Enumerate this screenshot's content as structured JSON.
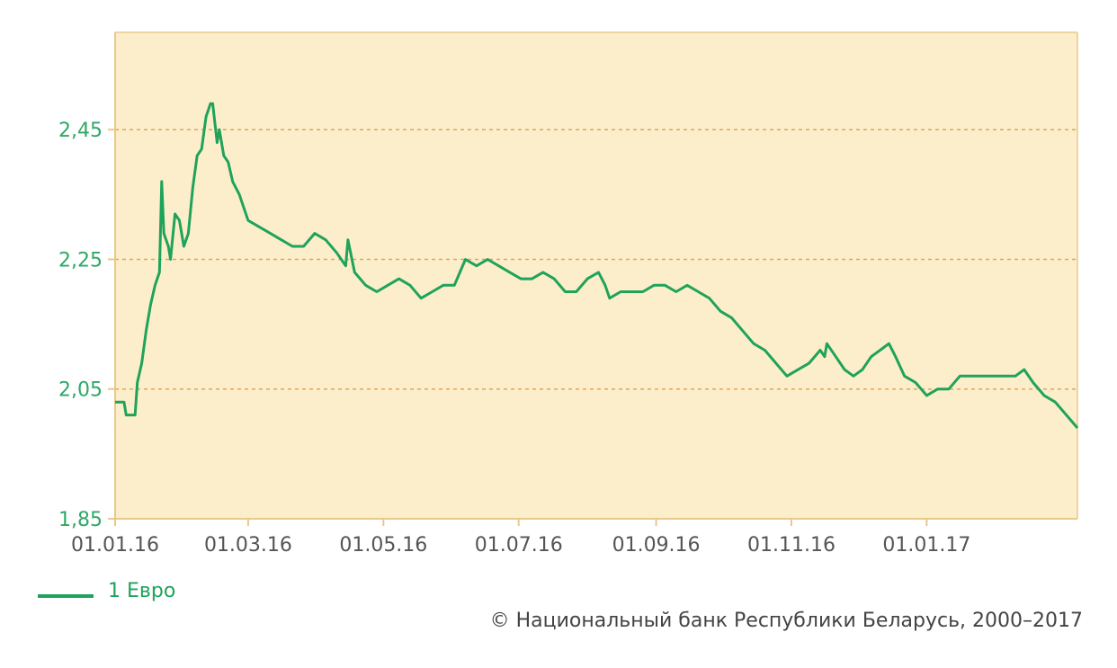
{
  "chart_data": {
    "type": "line",
    "title": "",
    "xlabel": "",
    "ylabel": "",
    "ylim": [
      1.85,
      2.6
    ],
    "xlim": [
      "2016-01-01",
      "2017-03-10"
    ],
    "grid": "horizontal dashed",
    "legend_position": "bottom-left",
    "y_ticks": [
      "1,85",
      "2,05",
      "2,25",
      "2,45"
    ],
    "x_ticks": [
      "01.01.16",
      "01.03.16",
      "01.05.16",
      "01.07.16",
      "01.09.16",
      "01.11.16",
      "01.01.17"
    ],
    "series": [
      {
        "name": "1 Евро",
        "points": [
          [
            "2016-01-01",
            2.03
          ],
          [
            "2016-01-05",
            2.03
          ],
          [
            "2016-01-06",
            2.01
          ],
          [
            "2016-01-10",
            2.01
          ],
          [
            "2016-01-11",
            2.06
          ],
          [
            "2016-01-13",
            2.09
          ],
          [
            "2016-01-15",
            2.14
          ],
          [
            "2016-01-17",
            2.18
          ],
          [
            "2016-01-19",
            2.21
          ],
          [
            "2016-01-21",
            2.23
          ],
          [
            "2016-01-22",
            2.37
          ],
          [
            "2016-01-23",
            2.29
          ],
          [
            "2016-01-25",
            2.27
          ],
          [
            "2016-01-26",
            2.25
          ],
          [
            "2016-01-28",
            2.32
          ],
          [
            "2016-01-30",
            2.31
          ],
          [
            "2016-02-01",
            2.27
          ],
          [
            "2016-02-03",
            2.29
          ],
          [
            "2016-02-05",
            2.36
          ],
          [
            "2016-02-07",
            2.41
          ],
          [
            "2016-02-09",
            2.42
          ],
          [
            "2016-02-11",
            2.47
          ],
          [
            "2016-02-13",
            2.49
          ],
          [
            "2016-02-14",
            2.49
          ],
          [
            "2016-02-16",
            2.43
          ],
          [
            "2016-02-17",
            2.45
          ],
          [
            "2016-02-19",
            2.41
          ],
          [
            "2016-02-21",
            2.4
          ],
          [
            "2016-02-23",
            2.37
          ],
          [
            "2016-02-26",
            2.35
          ],
          [
            "2016-02-28",
            2.33
          ],
          [
            "2016-03-01",
            2.31
          ],
          [
            "2016-03-06",
            2.3
          ],
          [
            "2016-03-11",
            2.29
          ],
          [
            "2016-03-16",
            2.28
          ],
          [
            "2016-03-21",
            2.27
          ],
          [
            "2016-03-26",
            2.27
          ],
          [
            "2016-03-31",
            2.29
          ],
          [
            "2016-04-05",
            2.28
          ],
          [
            "2016-04-10",
            2.26
          ],
          [
            "2016-04-14",
            2.24
          ],
          [
            "2016-04-15",
            2.28
          ],
          [
            "2016-04-18",
            2.23
          ],
          [
            "2016-04-23",
            2.21
          ],
          [
            "2016-04-28",
            2.2
          ],
          [
            "2016-05-03",
            2.21
          ],
          [
            "2016-05-08",
            2.22
          ],
          [
            "2016-05-13",
            2.21
          ],
          [
            "2016-05-18",
            2.19
          ],
          [
            "2016-05-23",
            2.2
          ],
          [
            "2016-05-28",
            2.21
          ],
          [
            "2016-06-02",
            2.21
          ],
          [
            "2016-06-07",
            2.25
          ],
          [
            "2016-06-12",
            2.24
          ],
          [
            "2016-06-17",
            2.25
          ],
          [
            "2016-06-22",
            2.24
          ],
          [
            "2016-06-27",
            2.23
          ],
          [
            "2016-07-02",
            2.22
          ],
          [
            "2016-07-07",
            2.22
          ],
          [
            "2016-07-12",
            2.23
          ],
          [
            "2016-07-17",
            2.22
          ],
          [
            "2016-07-22",
            2.2
          ],
          [
            "2016-07-27",
            2.2
          ],
          [
            "2016-08-01",
            2.22
          ],
          [
            "2016-08-06",
            2.23
          ],
          [
            "2016-08-09",
            2.21
          ],
          [
            "2016-08-11",
            2.19
          ],
          [
            "2016-08-16",
            2.2
          ],
          [
            "2016-08-21",
            2.2
          ],
          [
            "2016-08-26",
            2.2
          ],
          [
            "2016-08-31",
            2.21
          ],
          [
            "2016-09-05",
            2.21
          ],
          [
            "2016-09-10",
            2.2
          ],
          [
            "2016-09-15",
            2.21
          ],
          [
            "2016-09-20",
            2.2
          ],
          [
            "2016-09-25",
            2.19
          ],
          [
            "2016-09-30",
            2.17
          ],
          [
            "2016-10-05",
            2.16
          ],
          [
            "2016-10-10",
            2.14
          ],
          [
            "2016-10-15",
            2.12
          ],
          [
            "2016-10-20",
            2.11
          ],
          [
            "2016-10-25",
            2.09
          ],
          [
            "2016-10-30",
            2.07
          ],
          [
            "2016-11-04",
            2.08
          ],
          [
            "2016-11-09",
            2.09
          ],
          [
            "2016-11-14",
            2.11
          ],
          [
            "2016-11-16",
            2.1
          ],
          [
            "2016-11-17",
            2.12
          ],
          [
            "2016-11-21",
            2.1
          ],
          [
            "2016-11-25",
            2.08
          ],
          [
            "2016-11-29",
            2.07
          ],
          [
            "2016-12-03",
            2.08
          ],
          [
            "2016-12-07",
            2.1
          ],
          [
            "2016-12-11",
            2.11
          ],
          [
            "2016-12-15",
            2.12
          ],
          [
            "2016-12-18",
            2.1
          ],
          [
            "2016-12-22",
            2.07
          ],
          [
            "2016-12-27",
            2.06
          ],
          [
            "2017-01-01",
            2.04
          ],
          [
            "2017-01-06",
            2.05
          ],
          [
            "2017-01-11",
            2.05
          ],
          [
            "2017-01-16",
            2.07
          ],
          [
            "2017-01-21",
            2.07
          ],
          [
            "2017-01-26",
            2.07
          ],
          [
            "2017-01-31",
            2.07
          ],
          [
            "2017-02-05",
            2.07
          ],
          [
            "2017-02-10",
            2.07
          ],
          [
            "2017-02-14",
            2.08
          ],
          [
            "2017-02-18",
            2.06
          ],
          [
            "2017-02-23",
            2.04
          ],
          [
            "2017-02-28",
            2.03
          ],
          [
            "2017-03-05",
            2.01
          ],
          [
            "2017-03-10",
            1.99
          ]
        ]
      }
    ]
  },
  "legend": {
    "label": "1 Евро"
  },
  "copyright": "© Национальный банк Республики Беларусь, 2000–2017",
  "colors": {
    "line": "#1fa35a",
    "plot_bg": "#fdeecb",
    "axis": "#e8c98a",
    "grid": "#d9a760",
    "ytick_text": "#2fa866"
  }
}
